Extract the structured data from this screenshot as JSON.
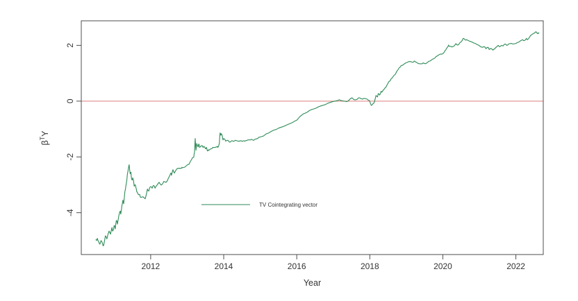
{
  "figure": {
    "background": "#ffffff"
  },
  "chart_data": {
    "type": "line",
    "title": "",
    "xlabel": "Year",
    "ylabel": "β^T Y",
    "ylabel_parts": {
      "base": "β",
      "sup": "T",
      "rest": "Y"
    },
    "xlim": [
      2010.1,
      2022.75
    ],
    "ylim": [
      -5.5,
      2.88
    ],
    "xticks": [
      2012,
      2014,
      2016,
      2018,
      2020,
      2022
    ],
    "yticks": [
      -4,
      -2,
      0,
      2
    ],
    "grid": false,
    "box": true,
    "axis_color": "#4d4d4d",
    "tick_label_color": "#333333",
    "hline": {
      "y": 0,
      "color": "#dd7d7d"
    },
    "legend": {
      "label": "TV Cointegrating vector",
      "position": "inside-left-center",
      "line_color": "#2e8b57",
      "text_color": "#333333"
    },
    "series": [
      {
        "name": "TV Cointegrating vector",
        "color": "#2e8b57",
        "points": [
          [
            2010.5,
            -4.97
          ],
          [
            2010.54,
            -4.92
          ],
          [
            2010.58,
            -5.05
          ],
          [
            2010.61,
            -5.13
          ],
          [
            2010.64,
            -5.0
          ],
          [
            2010.68,
            -5.1
          ],
          [
            2010.71,
            -5.18
          ],
          [
            2010.76,
            -4.83
          ],
          [
            2010.8,
            -4.94
          ],
          [
            2010.86,
            -4.66
          ],
          [
            2010.9,
            -4.77
          ],
          [
            2010.94,
            -4.53
          ],
          [
            2010.96,
            -4.66
          ],
          [
            2011.0,
            -4.46
          ],
          [
            2011.03,
            -4.58
          ],
          [
            2011.06,
            -4.28
          ],
          [
            2011.09,
            -4.41
          ],
          [
            2011.13,
            -4.1
          ],
          [
            2011.16,
            -3.95
          ],
          [
            2011.18,
            -4.05
          ],
          [
            2011.2,
            -3.9
          ],
          [
            2011.22,
            -3.7
          ],
          [
            2011.24,
            -3.55
          ],
          [
            2011.26,
            -3.68
          ],
          [
            2011.28,
            -3.45
          ],
          [
            2011.3,
            -3.2
          ],
          [
            2011.32,
            -3.05
          ],
          [
            2011.34,
            -2.9
          ],
          [
            2011.36,
            -2.65
          ],
          [
            2011.38,
            -2.5
          ],
          [
            2011.41,
            -2.28
          ],
          [
            2011.44,
            -2.6
          ],
          [
            2011.46,
            -2.55
          ],
          [
            2011.48,
            -2.8
          ],
          [
            2011.51,
            -2.75
          ],
          [
            2011.55,
            -3.05
          ],
          [
            2011.58,
            -3.0
          ],
          [
            2011.61,
            -3.17
          ],
          [
            2011.63,
            -3.26
          ],
          [
            2011.7,
            -3.35
          ],
          [
            2011.73,
            -3.45
          ],
          [
            2011.85,
            -3.5
          ],
          [
            2011.91,
            -3.15
          ],
          [
            2011.95,
            -3.22
          ],
          [
            2011.99,
            -3.07
          ],
          [
            2012.04,
            -3.12
          ],
          [
            2012.08,
            -3.02
          ],
          [
            2012.12,
            -3.12
          ],
          [
            2012.17,
            -3.02
          ],
          [
            2012.23,
            -2.91
          ],
          [
            2012.29,
            -3.01
          ],
          [
            2012.36,
            -2.88
          ],
          [
            2012.42,
            -2.91
          ],
          [
            2012.48,
            -2.78
          ],
          [
            2012.55,
            -2.58
          ],
          [
            2012.57,
            -2.66
          ],
          [
            2012.61,
            -2.46
          ],
          [
            2012.65,
            -2.58
          ],
          [
            2012.67,
            -2.53
          ],
          [
            2012.74,
            -2.41
          ],
          [
            2012.84,
            -2.41
          ],
          [
            2012.87,
            -2.39
          ],
          [
            2013.0,
            -2.29
          ],
          [
            2013.05,
            -2.26
          ],
          [
            2013.12,
            -2.09
          ],
          [
            2013.18,
            -2.01
          ],
          [
            2013.2,
            -1.84
          ],
          [
            2013.22,
            -1.34
          ],
          [
            2013.24,
            -1.76
          ],
          [
            2013.26,
            -1.52
          ],
          [
            2013.3,
            -1.64
          ],
          [
            2013.32,
            -1.54
          ],
          [
            2013.34,
            -1.66
          ],
          [
            2013.41,
            -1.59
          ],
          [
            2013.44,
            -1.66
          ],
          [
            2013.47,
            -1.64
          ],
          [
            2013.5,
            -1.71
          ],
          [
            2013.53,
            -1.66
          ],
          [
            2013.56,
            -1.79
          ],
          [
            2013.6,
            -1.76
          ],
          [
            2013.65,
            -1.71
          ],
          [
            2013.7,
            -1.66
          ],
          [
            2013.75,
            -1.66
          ],
          [
            2013.81,
            -1.64
          ],
          [
            2013.84,
            -1.66
          ],
          [
            2013.88,
            -1.52
          ],
          [
            2013.9,
            -1.14
          ],
          [
            2013.92,
            -1.22
          ],
          [
            2013.94,
            -1.17
          ],
          [
            2013.98,
            -1.39
          ],
          [
            2014.0,
            -1.34
          ],
          [
            2014.04,
            -1.39
          ],
          [
            2014.07,
            -1.42
          ],
          [
            2014.13,
            -1.42
          ],
          [
            2014.17,
            -1.47
          ],
          [
            2014.22,
            -1.42
          ],
          [
            2014.28,
            -1.44
          ],
          [
            2014.36,
            -1.42
          ],
          [
            2014.41,
            -1.44
          ],
          [
            2014.47,
            -1.42
          ],
          [
            2014.55,
            -1.42
          ],
          [
            2014.6,
            -1.42
          ],
          [
            2014.66,
            -1.39
          ],
          [
            2014.74,
            -1.39
          ],
          [
            2014.79,
            -1.39
          ],
          [
            2014.85,
            -1.37
          ],
          [
            2014.93,
            -1.34
          ],
          [
            2014.98,
            -1.29
          ],
          [
            2015.04,
            -1.27
          ],
          [
            2015.12,
            -1.22
          ],
          [
            2015.17,
            -1.17
          ],
          [
            2015.23,
            -1.14
          ],
          [
            2015.37,
            -1.04
          ],
          [
            2015.5,
            -0.97
          ],
          [
            2015.61,
            -0.92
          ],
          [
            2015.75,
            -0.84
          ],
          [
            2015.88,
            -0.77
          ],
          [
            2016.0,
            -0.68
          ],
          [
            2016.09,
            -0.55
          ],
          [
            2016.19,
            -0.45
          ],
          [
            2016.28,
            -0.4
          ],
          [
            2016.41,
            -0.3
          ],
          [
            2016.53,
            -0.25
          ],
          [
            2016.66,
            -0.17
          ],
          [
            2016.79,
            -0.12
          ],
          [
            2016.91,
            -0.05
          ],
          [
            2017.04,
            0.0
          ],
          [
            2017.17,
            0.05
          ],
          [
            2017.23,
            0.02
          ],
          [
            2017.29,
            0.0
          ],
          [
            2017.36,
            -0.02
          ],
          [
            2017.42,
            0.02
          ],
          [
            2017.48,
            0.1
          ],
          [
            2017.51,
            0.12
          ],
          [
            2017.55,
            0.07
          ],
          [
            2017.61,
            0.05
          ],
          [
            2017.66,
            0.07
          ],
          [
            2017.7,
            0.12
          ],
          [
            2017.74,
            0.1
          ],
          [
            2017.8,
            0.07
          ],
          [
            2017.85,
            0.1
          ],
          [
            2017.93,
            0.07
          ],
          [
            2017.99,
            0.02
          ],
          [
            2018.04,
            -0.15
          ],
          [
            2018.08,
            -0.1
          ],
          [
            2018.12,
            -0.05
          ],
          [
            2018.17,
            0.2
          ],
          [
            2018.21,
            0.15
          ],
          [
            2018.23,
            0.27
          ],
          [
            2018.27,
            0.22
          ],
          [
            2018.31,
            0.35
          ],
          [
            2018.33,
            0.32
          ],
          [
            2018.37,
            0.4
          ],
          [
            2018.42,
            0.48
          ],
          [
            2018.46,
            0.55
          ],
          [
            2018.5,
            0.65
          ],
          [
            2018.55,
            0.72
          ],
          [
            2018.62,
            0.84
          ],
          [
            2018.68,
            0.94
          ],
          [
            2018.73,
            1.05
          ],
          [
            2018.8,
            1.19
          ],
          [
            2018.86,
            1.27
          ],
          [
            2018.95,
            1.34
          ],
          [
            2019.03,
            1.39
          ],
          [
            2019.1,
            1.42
          ],
          [
            2019.17,
            1.39
          ],
          [
            2019.22,
            1.44
          ],
          [
            2019.28,
            1.39
          ],
          [
            2019.35,
            1.34
          ],
          [
            2019.42,
            1.34
          ],
          [
            2019.46,
            1.37
          ],
          [
            2019.52,
            1.34
          ],
          [
            2019.58,
            1.39
          ],
          [
            2019.65,
            1.44
          ],
          [
            2019.68,
            1.47
          ],
          [
            2019.75,
            1.52
          ],
          [
            2019.81,
            1.59
          ],
          [
            2019.87,
            1.64
          ],
          [
            2019.94,
            1.69
          ],
          [
            2020.0,
            1.71
          ],
          [
            2020.04,
            1.76
          ],
          [
            2020.06,
            1.81
          ],
          [
            2020.1,
            1.89
          ],
          [
            2020.13,
            1.94
          ],
          [
            2020.16,
            2.01
          ],
          [
            2020.19,
            1.96
          ],
          [
            2020.25,
            1.94
          ],
          [
            2020.29,
            1.96
          ],
          [
            2020.33,
            2.01
          ],
          [
            2020.36,
            2.06
          ],
          [
            2020.4,
            2.01
          ],
          [
            2020.45,
            2.06
          ],
          [
            2020.5,
            2.12
          ],
          [
            2020.53,
            2.17
          ],
          [
            2020.56,
            2.25
          ],
          [
            2020.6,
            2.21
          ],
          [
            2020.64,
            2.2
          ],
          [
            2020.7,
            2.17
          ],
          [
            2020.8,
            2.12
          ],
          [
            2020.89,
            2.07
          ],
          [
            2020.99,
            2.0
          ],
          [
            2021.08,
            1.93
          ],
          [
            2021.14,
            1.95
          ],
          [
            2021.18,
            1.88
          ],
          [
            2021.24,
            1.93
          ],
          [
            2021.27,
            1.85
          ],
          [
            2021.33,
            1.88
          ],
          [
            2021.37,
            1.83
          ],
          [
            2021.43,
            1.88
          ],
          [
            2021.46,
            1.93
          ],
          [
            2021.52,
            2.0
          ],
          [
            2021.56,
            1.95
          ],
          [
            2021.62,
            2.0
          ],
          [
            2021.65,
            1.98
          ],
          [
            2021.71,
            2.05
          ],
          [
            2021.75,
            2.0
          ],
          [
            2021.8,
            2.05
          ],
          [
            2021.88,
            2.07
          ],
          [
            2021.94,
            2.05
          ],
          [
            2022.0,
            2.07
          ],
          [
            2022.08,
            2.12
          ],
          [
            2022.13,
            2.17
          ],
          [
            2022.19,
            2.2
          ],
          [
            2022.23,
            2.17
          ],
          [
            2022.29,
            2.25
          ],
          [
            2022.32,
            2.2
          ],
          [
            2022.38,
            2.3
          ],
          [
            2022.42,
            2.37
          ],
          [
            2022.48,
            2.42
          ],
          [
            2022.51,
            2.44
          ],
          [
            2022.55,
            2.49
          ],
          [
            2022.59,
            2.42
          ],
          [
            2022.61,
            2.44
          ],
          [
            2022.63,
            2.45
          ]
        ]
      }
    ]
  }
}
